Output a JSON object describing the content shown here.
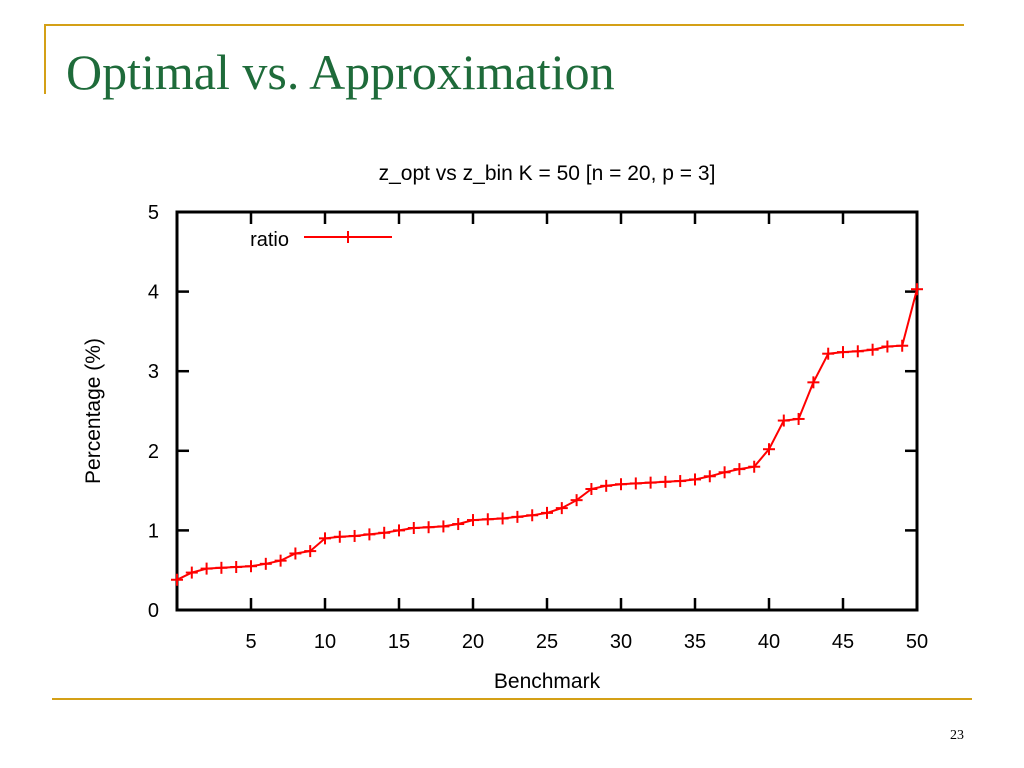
{
  "slide": {
    "title": "Optimal vs. Approximation",
    "page_number": "23"
  },
  "colors": {
    "title": "#1e6b3a",
    "accent_rule": "#d4a017",
    "series": "#ff0000"
  },
  "chart_data": {
    "type": "line",
    "title": "z_opt vs z_bin K = 50 [n = 20, p = 3]",
    "xlabel": "Benchmark",
    "ylabel": "Percentage (%)",
    "xlim": [
      0,
      50
    ],
    "ylim": [
      0,
      5
    ],
    "xticks": [
      5,
      10,
      15,
      20,
      25,
      30,
      35,
      40,
      45,
      50
    ],
    "yticks": [
      0,
      1,
      2,
      3,
      4,
      5
    ],
    "legend_position": "top-left",
    "series": [
      {
        "name": "ratio",
        "marker": "plus",
        "x": [
          0,
          1,
          2,
          3,
          4,
          5,
          6,
          7,
          8,
          9,
          10,
          11,
          12,
          13,
          14,
          15,
          16,
          17,
          18,
          19,
          20,
          21,
          22,
          23,
          24,
          25,
          26,
          27,
          28,
          29,
          30,
          31,
          32,
          33,
          34,
          35,
          36,
          37,
          38,
          39,
          40,
          41,
          42,
          43,
          44,
          45,
          46,
          47,
          48,
          49,
          50
        ],
        "y": [
          0.38,
          0.47,
          0.52,
          0.53,
          0.54,
          0.55,
          0.58,
          0.62,
          0.71,
          0.74,
          0.9,
          0.92,
          0.93,
          0.95,
          0.97,
          1.0,
          1.03,
          1.04,
          1.05,
          1.08,
          1.13,
          1.14,
          1.15,
          1.17,
          1.19,
          1.22,
          1.28,
          1.38,
          1.52,
          1.56,
          1.58,
          1.59,
          1.6,
          1.61,
          1.62,
          1.64,
          1.68,
          1.73,
          1.77,
          1.8,
          2.02,
          2.38,
          2.4,
          2.86,
          3.22,
          3.24,
          3.25,
          3.27,
          3.31,
          3.32,
          4.03
        ]
      }
    ]
  }
}
